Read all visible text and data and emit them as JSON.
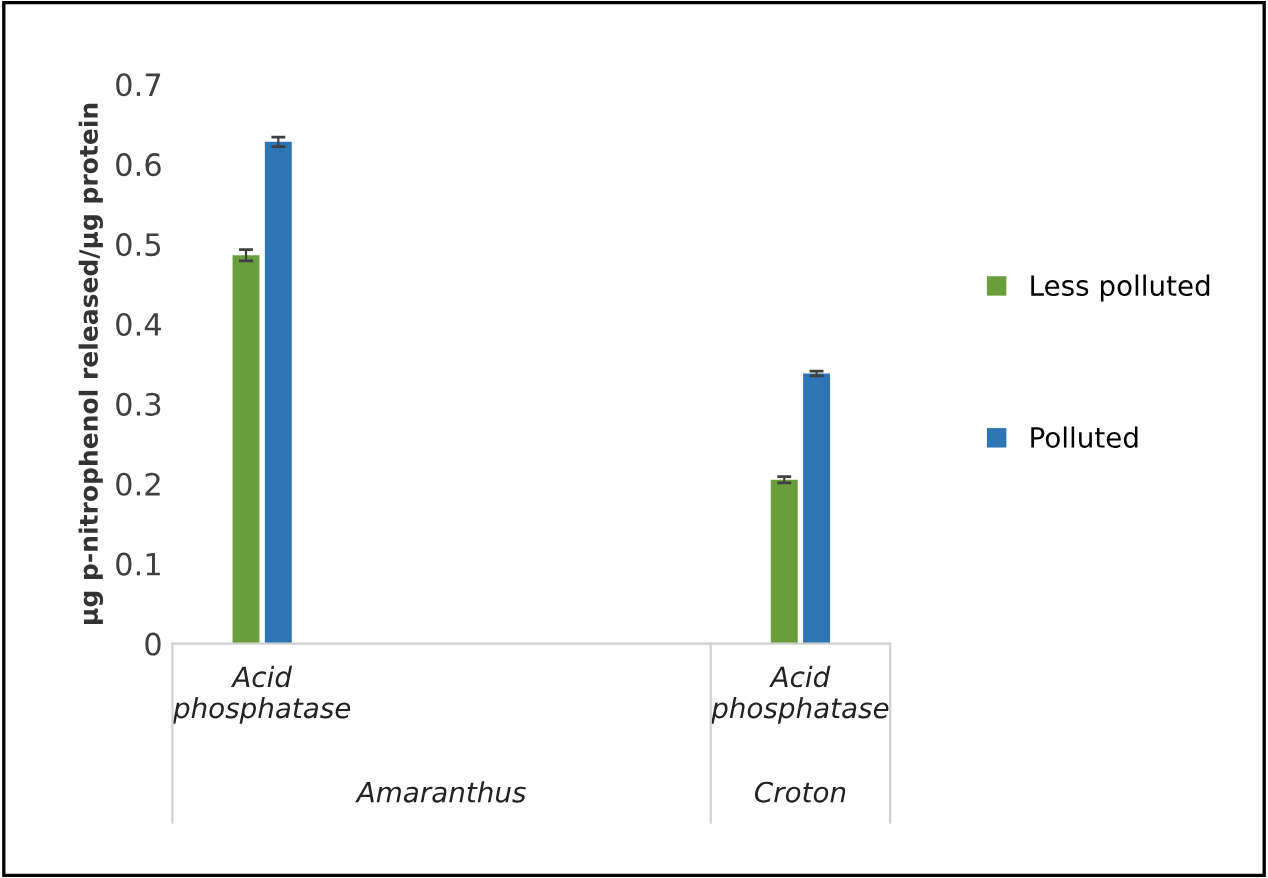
{
  "chart_data": {
    "type": "bar",
    "ylabel": "µg p-nitrophenol released/µg protein",
    "categories": [
      "Acid phosphatase",
      null,
      null,
      "Acid phosphatase"
    ],
    "series": [
      {
        "name": "Less polluted",
        "color": "#6a9e3c",
        "values": [
          0.486,
          null,
          null,
          0.205
        ],
        "errors": [
          0.007,
          null,
          null,
          0.004
        ]
      },
      {
        "name": "Polluted",
        "color": "#2e75b6",
        "values": [
          0.628,
          null,
          null,
          0.338
        ],
        "errors": [
          0.006,
          null,
          null,
          0.003
        ]
      }
    ],
    "annotations": [
      "Amaranthus",
      "Croton"
    ],
    "ylim": [
      0,
      0.7
    ],
    "yticks": [
      0,
      0.1,
      0.2,
      0.3,
      0.4,
      0.5,
      0.6,
      0.7
    ],
    "grid": false,
    "legend": "right"
  }
}
